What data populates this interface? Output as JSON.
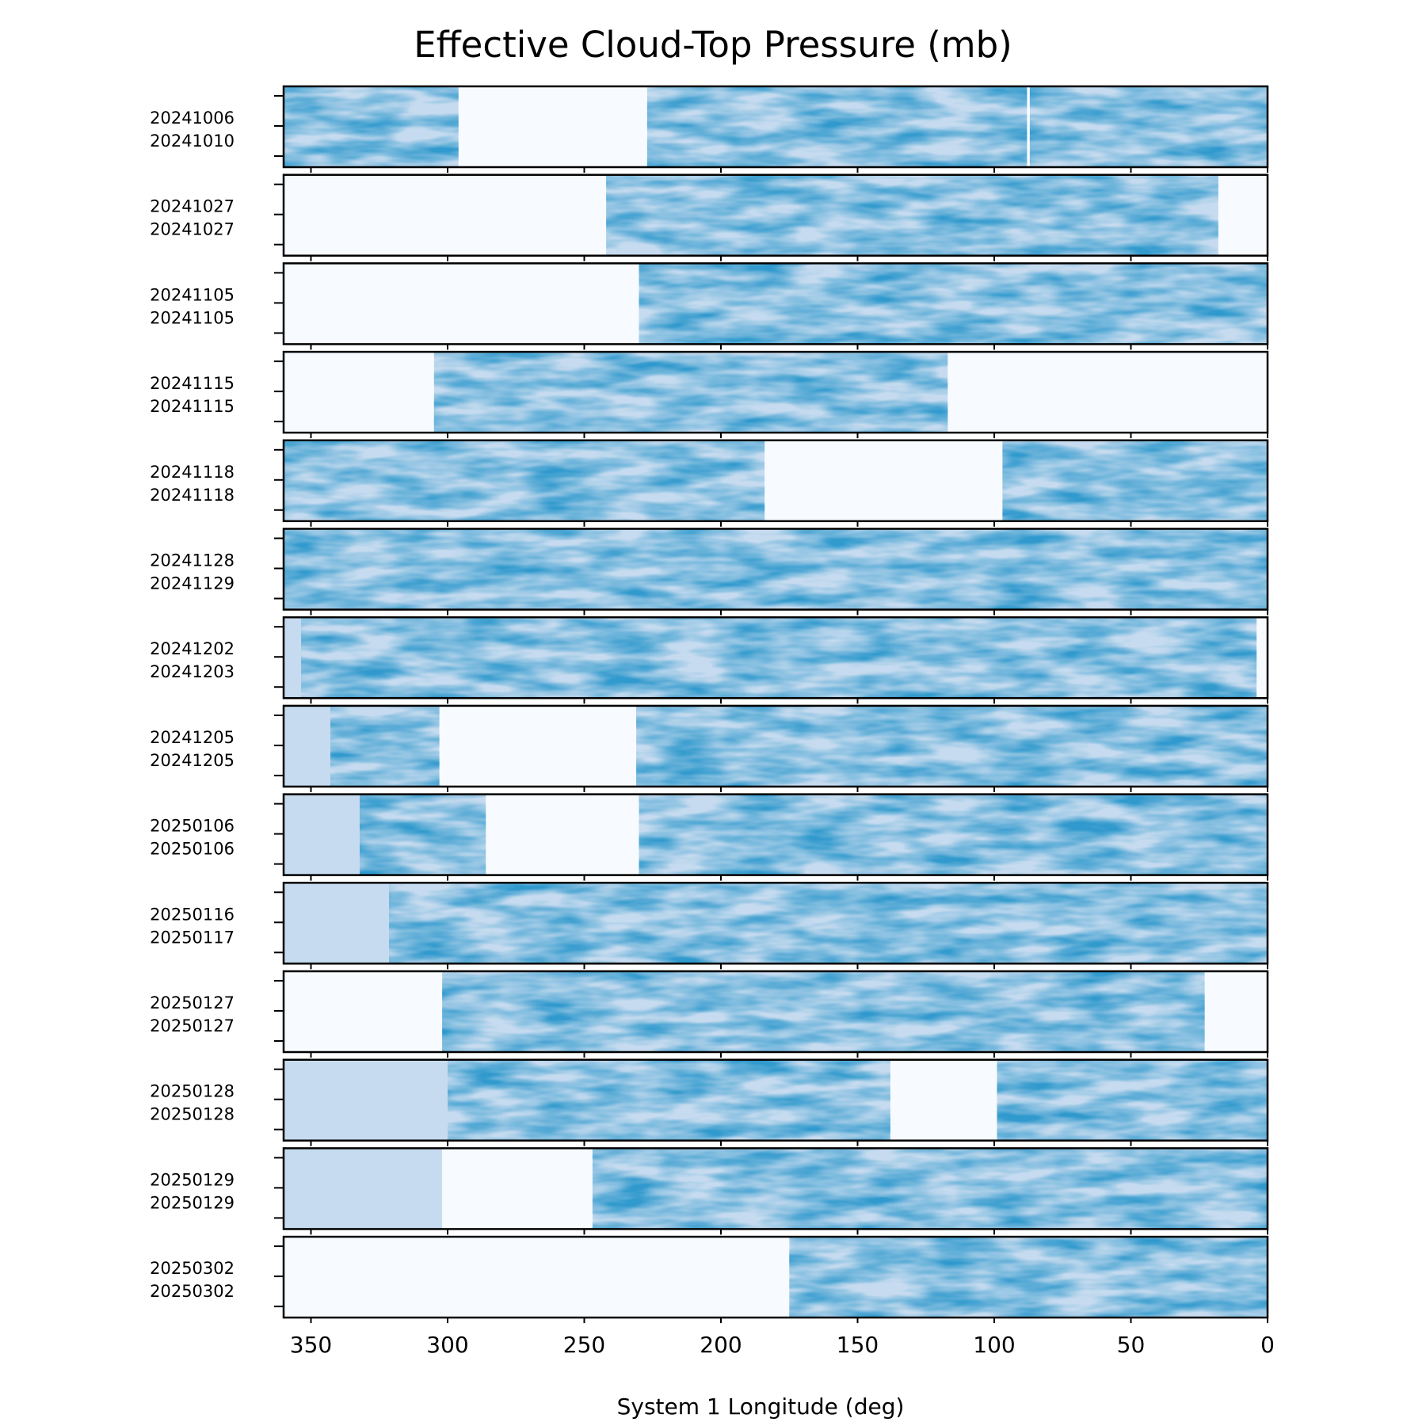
{
  "chart_data": {
    "type": "heatmap",
    "title": "Effective Cloud-Top Pressure (mb)",
    "xlabel": "System 1 Longitude (deg)",
    "xlim": [
      360,
      0
    ],
    "xticks": [
      350,
      300,
      250,
      200,
      150,
      100,
      50,
      0
    ],
    "colormap": "Blues",
    "colors": {
      "light": "#f7fbff",
      "dark": "#08519c",
      "axis": "#000000"
    },
    "panels": [
      {
        "start": "20241006",
        "end": "20241010",
        "coverage": [
          [
            360,
            296
          ],
          [
            227,
            88
          ],
          [
            87,
            0
          ]
        ]
      },
      {
        "start": "20241027",
        "end": "20241027",
        "coverage": [
          [
            242,
            18
          ]
        ]
      },
      {
        "start": "20241105",
        "end": "20241105",
        "coverage": [
          [
            230,
            0
          ]
        ]
      },
      {
        "start": "20241115",
        "end": "20241115",
        "coverage": [
          [
            305,
            117
          ]
        ]
      },
      {
        "start": "20241118",
        "end": "20241118",
        "coverage": [
          [
            360,
            184
          ],
          [
            97,
            0
          ]
        ]
      },
      {
        "start": "20241128",
        "end": "20241129",
        "coverage": [
          [
            360,
            0
          ]
        ]
      },
      {
        "start": "20241202",
        "end": "20241203",
        "coverage": [
          [
            360,
            4
          ]
        ]
      },
      {
        "start": "20241205",
        "end": "20241205",
        "coverage": [
          [
            360,
            303
          ],
          [
            231,
            0
          ]
        ]
      },
      {
        "start": "20250106",
        "end": "20250106",
        "coverage": [
          [
            360,
            286
          ],
          [
            230,
            0
          ]
        ]
      },
      {
        "start": "20250116",
        "end": "20250117",
        "coverage": [
          [
            360,
            0
          ]
        ]
      },
      {
        "start": "20250127",
        "end": "20250127",
        "coverage": [
          [
            302,
            23
          ]
        ]
      },
      {
        "start": "20250128",
        "end": "20250128",
        "coverage": [
          [
            360,
            138
          ],
          [
            99,
            0
          ]
        ]
      },
      {
        "start": "20250129",
        "end": "20250129",
        "coverage": [
          [
            360,
            302
          ],
          [
            247,
            0
          ]
        ]
      },
      {
        "start": "20250302",
        "end": "20250302",
        "coverage": [
          [
            175,
            0
          ]
        ]
      }
    ]
  }
}
